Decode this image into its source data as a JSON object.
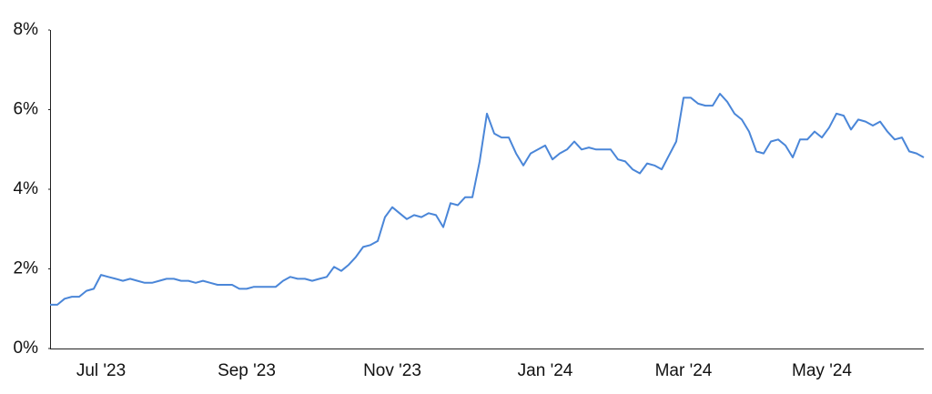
{
  "chart_data": {
    "type": "line",
    "color": "#4a86d8",
    "categories": [
      null,
      null,
      null,
      null,
      null,
      null,
      null,
      "Jul '23",
      null,
      null,
      null,
      null,
      null,
      null,
      null,
      null,
      null,
      null,
      null,
      null,
      null,
      null,
      null,
      null,
      null,
      null,
      null,
      "Sep '23",
      null,
      null,
      null,
      null,
      null,
      null,
      null,
      null,
      null,
      null,
      null,
      null,
      null,
      null,
      null,
      null,
      null,
      null,
      null,
      "Nov '23",
      null,
      null,
      null,
      null,
      null,
      null,
      null,
      null,
      null,
      null,
      null,
      null,
      null,
      null,
      null,
      null,
      null,
      null,
      null,
      null,
      "Jan '24",
      null,
      null,
      null,
      null,
      null,
      null,
      null,
      null,
      null,
      null,
      null,
      null,
      null,
      null,
      null,
      null,
      null,
      null,
      "Mar '24",
      null,
      null,
      null,
      null,
      null,
      null,
      null,
      null,
      null,
      null,
      null,
      null,
      null,
      null,
      null,
      null,
      null,
      null,
      "May '24",
      null,
      null,
      null,
      null,
      null,
      null,
      null,
      null,
      null,
      null,
      null,
      null,
      null,
      null
    ],
    "values": [
      1.1,
      1.1,
      1.25,
      1.3,
      1.3,
      1.45,
      1.5,
      1.85,
      1.8,
      1.75,
      1.7,
      1.75,
      1.7,
      1.65,
      1.65,
      1.7,
      1.75,
      1.75,
      1.7,
      1.7,
      1.65,
      1.7,
      1.65,
      1.6,
      1.6,
      1.6,
      1.5,
      1.5,
      1.55,
      1.55,
      1.55,
      1.55,
      1.7,
      1.8,
      1.75,
      1.75,
      1.7,
      1.75,
      1.8,
      2.05,
      1.95,
      2.1,
      2.3,
      2.55,
      2.6,
      2.7,
      3.3,
      3.55,
      3.4,
      3.25,
      3.35,
      3.3,
      3.4,
      3.35,
      3.05,
      3.65,
      3.6,
      3.8,
      3.8,
      4.7,
      5.9,
      5.4,
      5.3,
      5.3,
      4.9,
      4.6,
      4.9,
      5.0,
      5.1,
      4.75,
      4.9,
      5.0,
      5.2,
      5.0,
      5.05,
      5.0,
      5.0,
      5.0,
      4.75,
      4.7,
      4.5,
      4.4,
      4.65,
      4.6,
      4.5,
      4.85,
      5.2,
      6.3,
      6.3,
      6.15,
      6.1,
      6.1,
      6.4,
      6.2,
      5.9,
      5.75,
      5.45,
      4.95,
      4.9,
      5.2,
      5.25,
      5.1,
      4.8,
      5.25,
      5.25,
      5.45,
      5.3,
      5.55,
      5.9,
      5.85,
      5.5,
      5.75,
      5.7,
      5.6,
      5.7,
      5.45,
      5.25,
      5.3,
      4.95,
      4.9,
      4.8
    ],
    "ylim": [
      0,
      8
    ],
    "yticks": [
      {
        "value": 0,
        "label": "0%"
      },
      {
        "value": 2,
        "label": "2%"
      },
      {
        "value": 4,
        "label": "4%"
      },
      {
        "value": 6,
        "label": "6%"
      },
      {
        "value": 8,
        "label": "8%"
      }
    ]
  }
}
